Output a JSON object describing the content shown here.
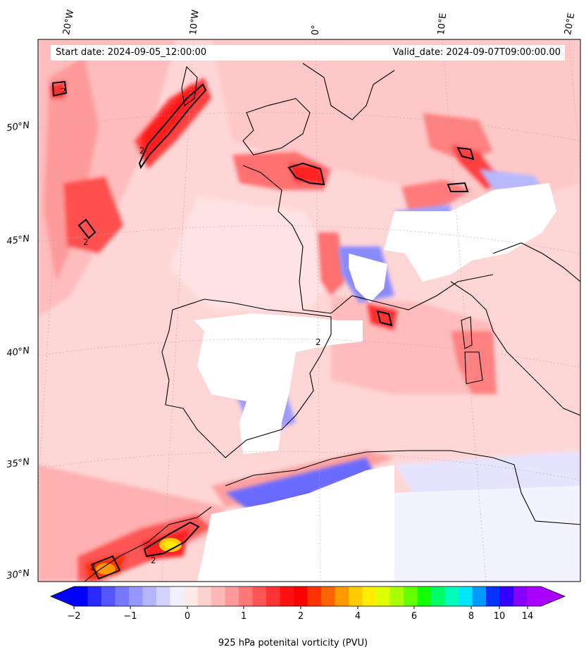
{
  "header": {
    "start_date": "Start date: 2024-09-05_12:00:00",
    "valid_date": "Valid_date: 2024-09-07T09:00:00.00"
  },
  "map": {
    "projection": "oblique conic (Lambert-like)",
    "longitude_labels": [
      "20°W",
      "10°W",
      "0°",
      "10°E",
      "20°E"
    ],
    "latitude_labels": [
      "50°N",
      "45°N",
      "40°N",
      "35°N",
      "30°N"
    ],
    "contour_label": "2",
    "gridlines": true,
    "coastlines": true
  },
  "colorbar": {
    "title": "925 hPa potenital vorticity (PVU)",
    "tick_labels": [
      "−2",
      "−1",
      "0",
      "1",
      "2",
      "4",
      "6",
      "8",
      "10",
      "14"
    ],
    "extend": "both",
    "colors": [
      "#0000ff",
      "#2a2aff",
      "#5555ff",
      "#7878ff",
      "#9696ff",
      "#b4b4ff",
      "#d2d2ff",
      "#f0f0ff",
      "#ffeaea",
      "#ffd2d2",
      "#ffb8b8",
      "#ff9999",
      "#ff7777",
      "#ff5555",
      "#ff3333",
      "#ff1111",
      "#ff0000",
      "#ff3300",
      "#ff6600",
      "#ff9900",
      "#ffcc00",
      "#ffee00",
      "#ddff00",
      "#aaff00",
      "#66ff00",
      "#11ff00",
      "#00ff66",
      "#00ffbb",
      "#00e6ff",
      "#0099ff",
      "#0033ff",
      "#3300ff",
      "#8800ff",
      "#aa00ff"
    ]
  }
}
